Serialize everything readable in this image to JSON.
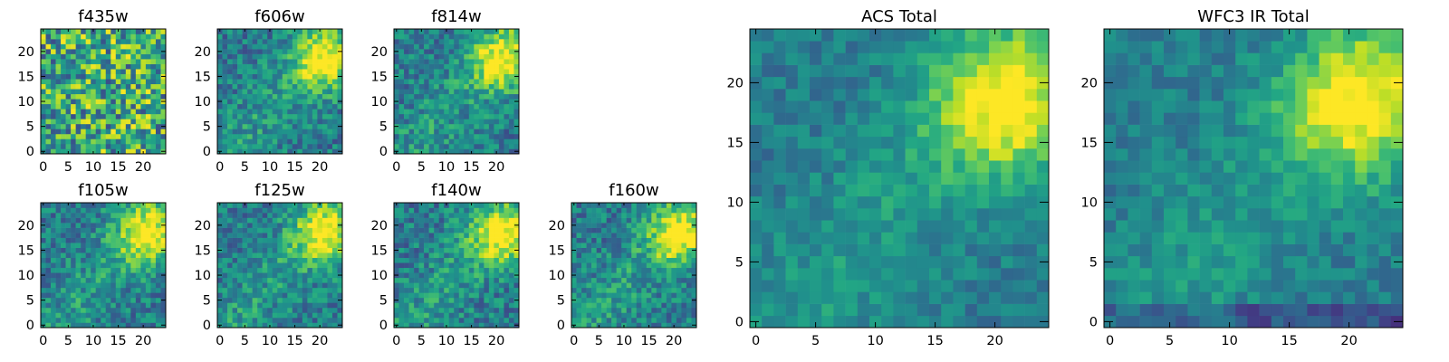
{
  "chart_data": [
    {
      "type": "heatmap",
      "title": "f435w",
      "xlim": [
        -0.5,
        24.5
      ],
      "ylim": [
        -0.5,
        24.5
      ],
      "xticks": [
        0,
        5,
        10,
        15,
        20
      ],
      "yticks": [
        0,
        5,
        10,
        15,
        20
      ],
      "size": 25,
      "pattern": "noise",
      "colormap": "viridis"
    },
    {
      "type": "heatmap",
      "title": "f606w",
      "xlim": [
        -0.5,
        24.5
      ],
      "ylim": [
        -0.5,
        24.5
      ],
      "xticks": [
        0,
        5,
        10,
        15,
        20
      ],
      "yticks": [
        0,
        5,
        10,
        15,
        20
      ],
      "size": 25,
      "pattern": "hotspot-upper-right",
      "colormap": "viridis"
    },
    {
      "type": "heatmap",
      "title": "f814w",
      "xlim": [
        -0.5,
        24.5
      ],
      "ylim": [
        -0.5,
        24.5
      ],
      "xticks": [
        0,
        5,
        10,
        15,
        20
      ],
      "yticks": [
        0,
        5,
        10,
        15,
        20
      ],
      "size": 25,
      "pattern": "hotspot-upper-right",
      "colormap": "viridis"
    },
    {
      "type": "heatmap",
      "title": "f105w",
      "xlim": [
        -0.5,
        24.5
      ],
      "ylim": [
        -0.5,
        24.5
      ],
      "xticks": [
        0,
        5,
        10,
        15,
        20
      ],
      "yticks": [
        0,
        5,
        10,
        15,
        20
      ],
      "size": 25,
      "pattern": "hotspot-upper-right",
      "colormap": "viridis"
    },
    {
      "type": "heatmap",
      "title": "f125w",
      "xlim": [
        -0.5,
        24.5
      ],
      "ylim": [
        -0.5,
        24.5
      ],
      "xticks": [
        0,
        5,
        10,
        15,
        20
      ],
      "yticks": [
        0,
        5,
        10,
        15,
        20
      ],
      "size": 25,
      "pattern": "hotspot-upper-right",
      "colormap": "viridis"
    },
    {
      "type": "heatmap",
      "title": "f140w",
      "xlim": [
        -0.5,
        24.5
      ],
      "ylim": [
        -0.5,
        24.5
      ],
      "xticks": [
        0,
        5,
        10,
        15,
        20
      ],
      "yticks": [
        0,
        5,
        10,
        15,
        20
      ],
      "size": 25,
      "pattern": "hotspot-upper-right",
      "colormap": "viridis"
    },
    {
      "type": "heatmap",
      "title": "f160w",
      "xlim": [
        -0.5,
        24.5
      ],
      "ylim": [
        -0.5,
        24.5
      ],
      "xticks": [
        0,
        5,
        10,
        15,
        20
      ],
      "yticks": [
        0,
        5,
        10,
        15,
        20
      ],
      "size": 25,
      "pattern": "hotspot-upper-right",
      "colormap": "viridis"
    },
    {
      "type": "heatmap",
      "title": "ACS Total",
      "xlim": [
        -0.5,
        24.5
      ],
      "ylim": [
        -0.5,
        24.5
      ],
      "xticks": [
        0,
        5,
        10,
        15,
        20
      ],
      "yticks": [
        0,
        5,
        10,
        15,
        20
      ],
      "size": 25,
      "pattern": "hotspot-upper-right",
      "colormap": "viridis"
    },
    {
      "type": "heatmap",
      "title": "WFC3 IR Total",
      "xlim": [
        -0.5,
        24.5
      ],
      "ylim": [
        -0.5,
        24.5
      ],
      "xticks": [
        0,
        5,
        10,
        15,
        20
      ],
      "yticks": [
        0,
        5,
        10,
        15,
        20
      ],
      "size": 25,
      "pattern": "hotspot-upper-right",
      "colormap": "viridis"
    }
  ]
}
